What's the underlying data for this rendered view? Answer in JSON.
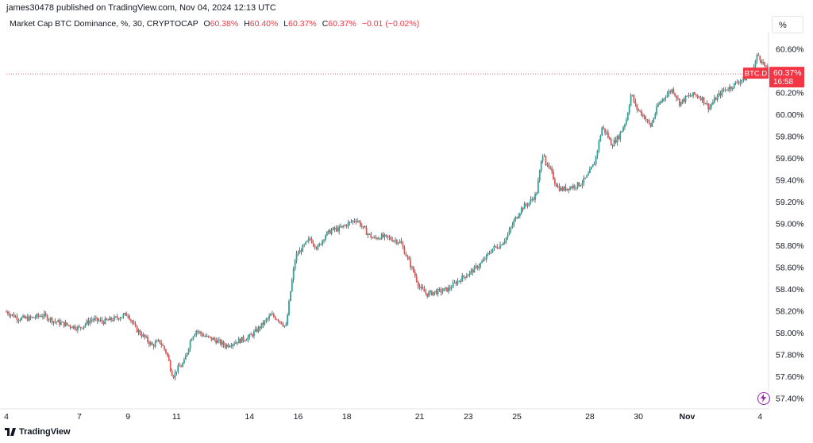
{
  "header": {
    "published_line": "james30478 published on TradingView.com, Nov 04, 2024 12:13 UTC"
  },
  "legend": {
    "symbol": "Market Cap BTC Dominance, %, 30, CRYPTOCAP",
    "open_label": "O",
    "open_value": "60.38%",
    "high_label": "H",
    "high_value": "60.40%",
    "low_label": "L",
    "low_value": "60.37%",
    "close_label": "C",
    "close_value": "60.37%",
    "change": "−0.01 (−0.02%)"
  },
  "toolbar": {
    "percent_button": "%"
  },
  "price_label": {
    "ticker": "BTC.D",
    "price": "60.37%",
    "countdown": "16:58"
  },
  "footer": {
    "brand": "TradingView"
  },
  "colors": {
    "up": "#26a69a",
    "down": "#ef5350",
    "wick": "#131722",
    "badge": "#f23645",
    "accent_icon": "#9c27b0"
  },
  "chart_data": {
    "type": "candlestick-line",
    "title": "Market Cap BTC Dominance, %, 30, CRYPTOCAP",
    "ylim": [
      57.3,
      60.72
    ],
    "y_ticks": [
      "60.60%",
      "60.40%",
      "60.20%",
      "60.00%",
      "59.80%",
      "59.60%",
      "59.40%",
      "59.20%",
      "59.00%",
      "58.80%",
      "58.60%",
      "58.40%",
      "58.20%",
      "58.00%",
      "57.80%",
      "57.60%",
      "57.40%"
    ],
    "y_tick_values": [
      60.6,
      60.4,
      60.2,
      60.0,
      59.8,
      59.6,
      59.4,
      59.2,
      59.0,
      58.8,
      58.6,
      58.4,
      58.2,
      58.0,
      57.8,
      57.6,
      57.4
    ],
    "x_ticks": [
      "4",
      "7",
      "9",
      "11",
      "14",
      "16",
      "18",
      "21",
      "23",
      "25",
      "28",
      "30",
      "Nov",
      "4"
    ],
    "x_tick_days": [
      4,
      7,
      9,
      11,
      14,
      16,
      18,
      21,
      23,
      25,
      28,
      30,
      32,
      35
    ],
    "x_range_days": [
      4,
      35.35
    ],
    "last_price": 60.37,
    "series": [
      {
        "x_days": [
          4.0,
          4.5,
          5.0,
          5.5,
          6.0,
          6.5,
          7.0,
          7.5,
          8.0,
          8.5,
          9.0,
          9.3,
          9.7,
          10.0,
          10.3,
          10.6,
          10.8,
          10.9,
          11.0,
          11.3,
          11.6,
          11.8,
          12.2,
          12.6,
          13.0,
          13.5,
          14.0,
          14.3,
          14.6,
          14.9,
          15.2,
          15.5,
          15.7,
          15.9,
          16.2,
          16.5,
          16.8,
          17.1,
          17.4,
          17.7,
          18.0,
          18.4,
          18.8,
          19.1,
          19.4,
          19.8,
          20.2,
          20.5,
          20.8,
          21.0,
          21.3,
          21.6,
          21.9,
          22.2,
          22.5,
          22.8,
          23.2,
          23.6,
          24.0,
          24.3,
          24.6,
          24.9,
          25.2,
          25.5,
          25.8,
          26.0,
          26.1,
          26.2,
          26.4,
          26.6,
          26.8,
          27.0,
          27.3,
          27.6,
          27.9,
          28.2,
          28.5,
          28.7,
          28.9,
          29.2,
          29.5,
          29.7,
          29.9,
          30.2,
          30.5,
          30.8,
          31.1,
          31.4,
          31.7,
          32.0,
          32.3,
          32.6,
          32.9,
          33.2,
          33.5,
          33.8,
          34.1,
          34.4,
          34.7,
          34.9,
          35.1,
          35.35
        ],
        "y": [
          58.19,
          58.13,
          58.13,
          58.16,
          58.1,
          58.07,
          58.04,
          58.12,
          58.1,
          58.13,
          58.17,
          58.04,
          57.95,
          57.88,
          57.92,
          57.81,
          57.63,
          57.6,
          57.66,
          57.72,
          57.95,
          58.02,
          57.96,
          57.93,
          57.88,
          57.92,
          57.96,
          58.02,
          58.09,
          58.16,
          58.12,
          58.05,
          58.4,
          58.7,
          58.78,
          58.86,
          58.77,
          58.89,
          58.94,
          58.95,
          58.99,
          59.04,
          58.92,
          58.86,
          58.88,
          58.86,
          58.83,
          58.68,
          58.53,
          58.41,
          58.35,
          58.37,
          58.38,
          58.4,
          58.46,
          58.51,
          58.57,
          58.65,
          58.77,
          58.8,
          58.88,
          59.03,
          59.14,
          59.19,
          59.27,
          59.56,
          59.68,
          59.53,
          59.48,
          59.36,
          59.31,
          59.32,
          59.34,
          59.36,
          59.43,
          59.56,
          59.88,
          59.82,
          59.72,
          59.8,
          59.95,
          60.19,
          60.06,
          59.99,
          59.89,
          60.08,
          60.17,
          60.23,
          60.1,
          60.16,
          60.18,
          60.15,
          60.06,
          60.15,
          60.22,
          60.25,
          60.3,
          60.33,
          60.4,
          60.55,
          60.48,
          60.37
        ]
      }
    ]
  }
}
